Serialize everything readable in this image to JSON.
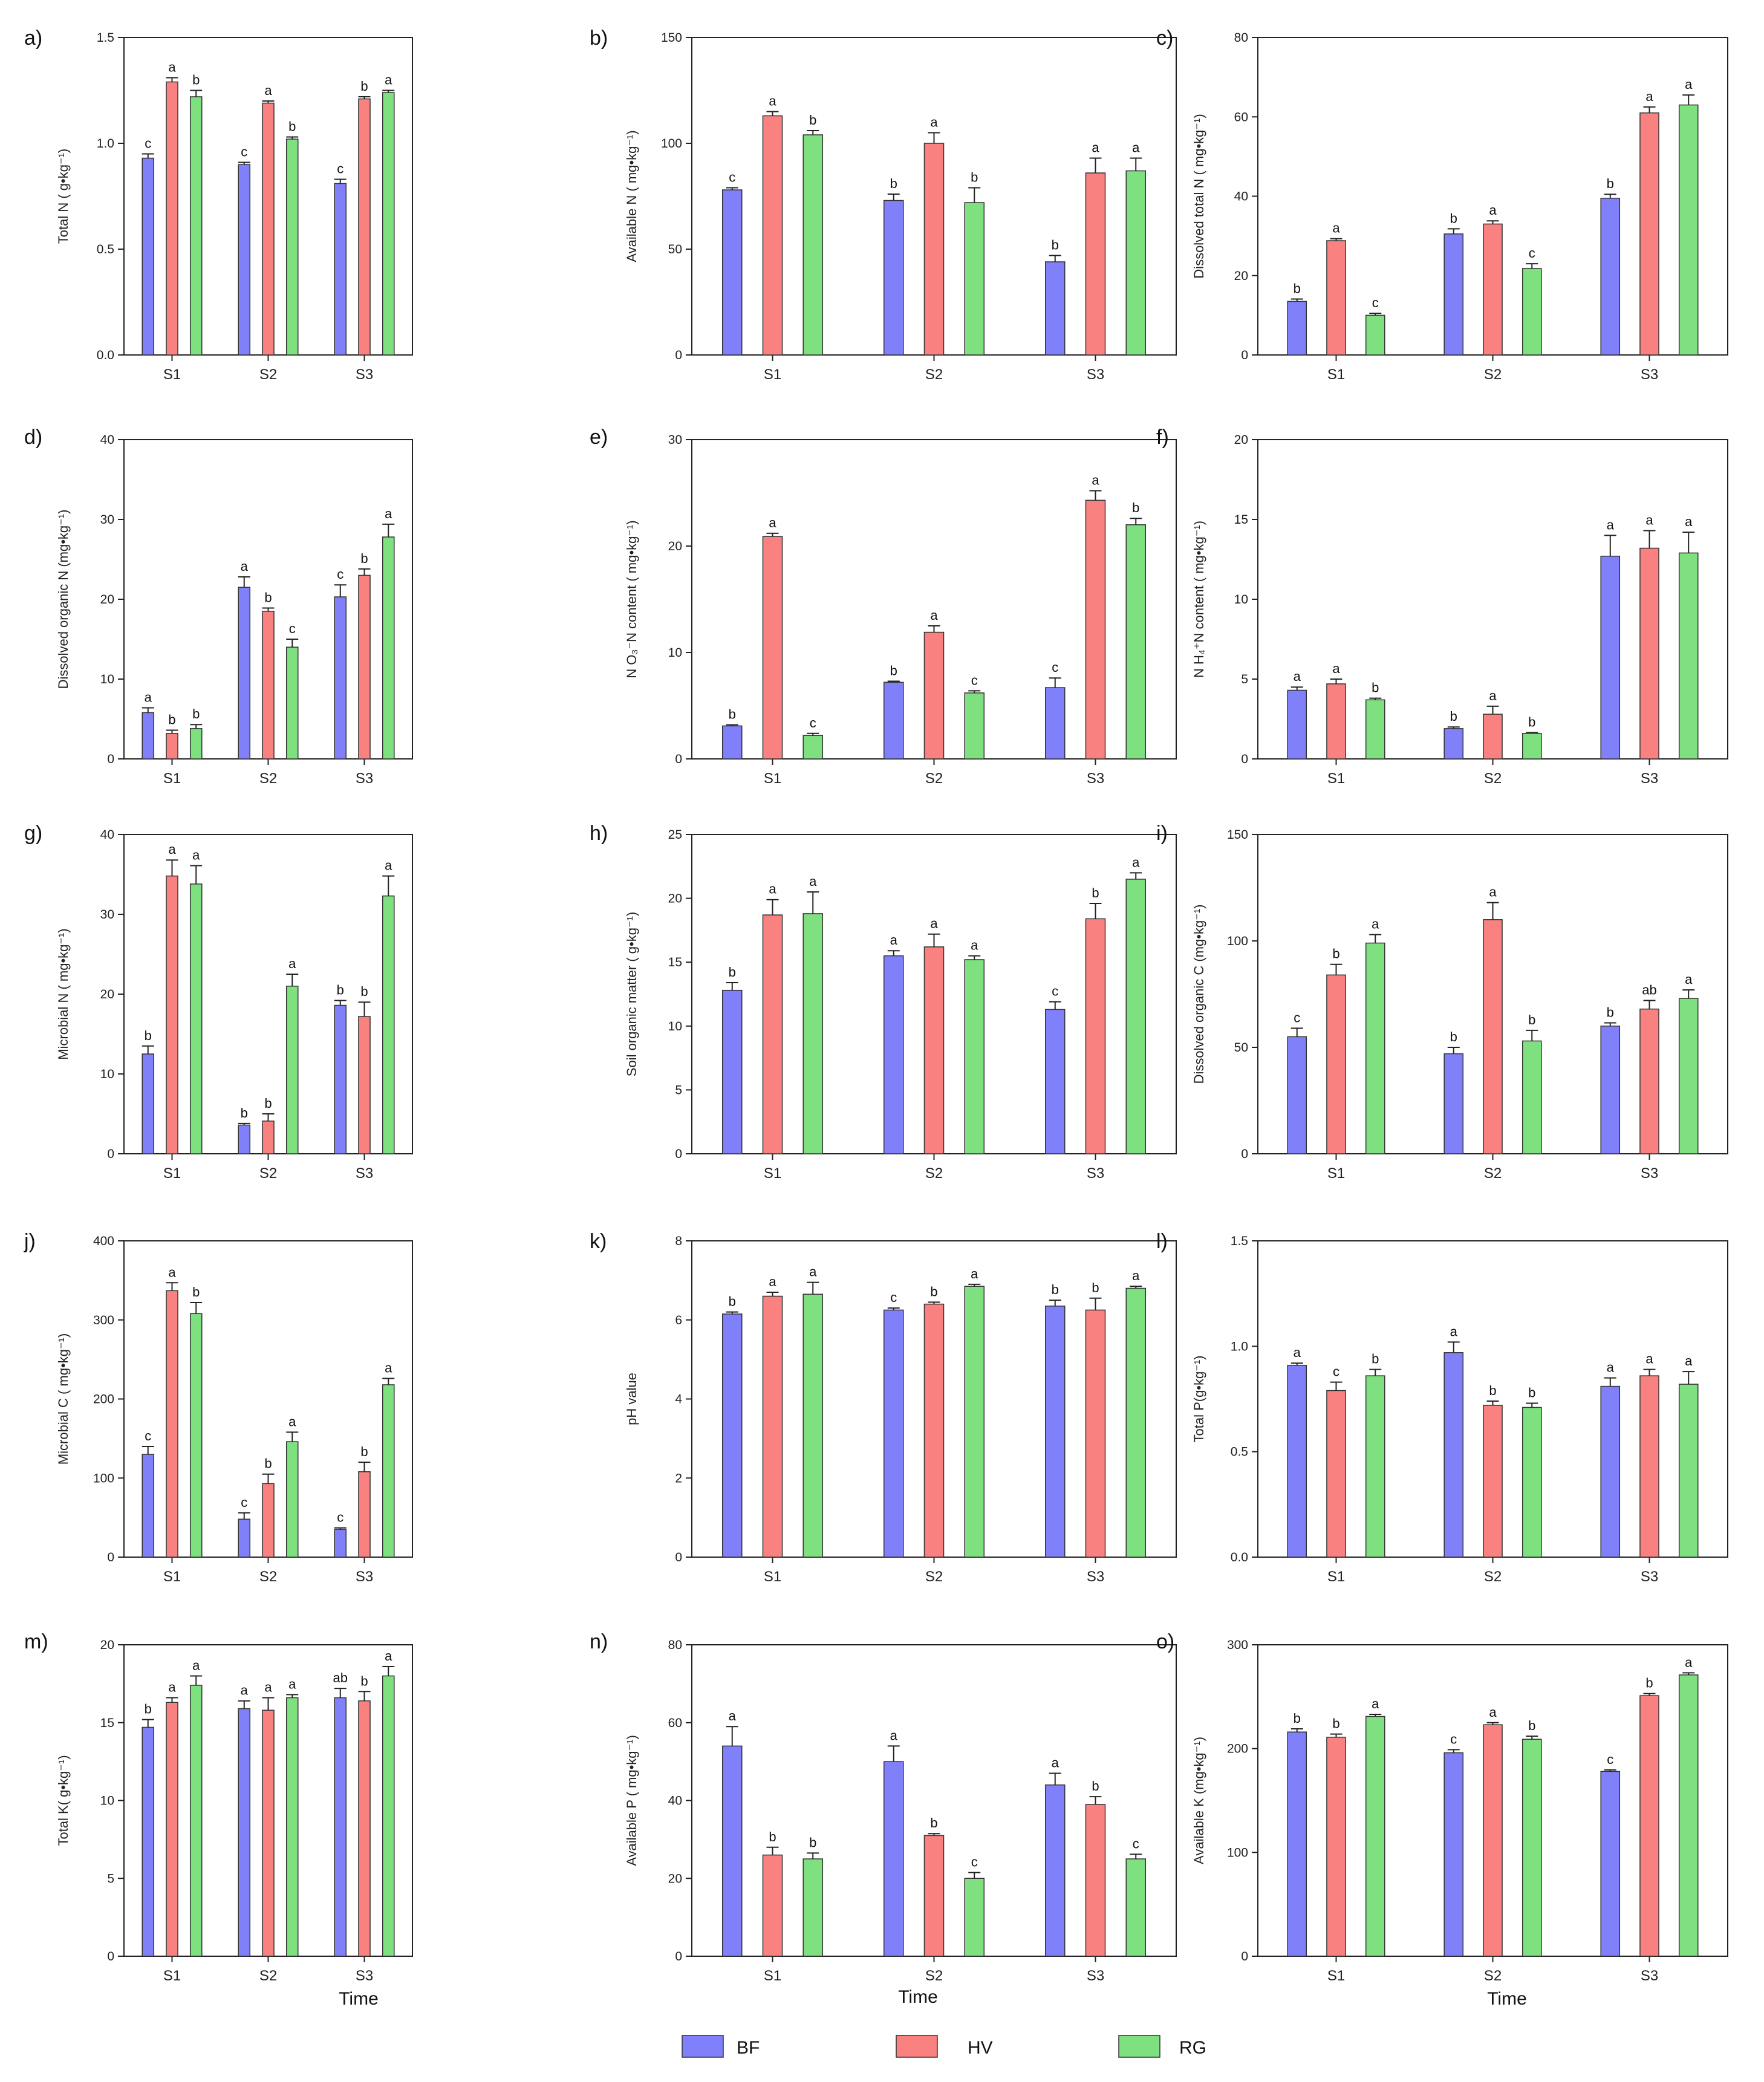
{
  "figure": {
    "colors": {
      "BF": "#8080fb",
      "HV": "#f98281",
      "RG": "#7fe07f"
    },
    "legend": {
      "items": [
        {
          "key": "BF",
          "label": "BF"
        },
        {
          "key": "HV",
          "label": "HV"
        },
        {
          "key": "RG",
          "label": "RG"
        }
      ],
      "placement": "bottom-center"
    },
    "x_title": "Time"
  },
  "chart_data": [
    {
      "type": "bar",
      "panel": "a)",
      "ylabel": "Total N ( g•kg⁻¹)",
      "ylim": [
        0,
        1.5
      ],
      "yticks": [
        "0.0",
        "0.5",
        "1.0",
        "1.5"
      ],
      "categories": [
        "S1",
        "S2",
        "S3"
      ],
      "series": [
        {
          "name": "BF",
          "values": [
            0.93,
            0.9,
            0.81
          ],
          "errors": [
            0.02,
            0.01,
            0.02
          ],
          "letters": [
            "c",
            "c",
            "c"
          ]
        },
        {
          "name": "HV",
          "values": [
            1.29,
            1.19,
            1.21
          ],
          "errors": [
            0.02,
            0.01,
            0.01
          ],
          "letters": [
            "a",
            "a",
            "b"
          ]
        },
        {
          "name": "RG",
          "values": [
            1.22,
            1.02,
            1.24
          ],
          "errors": [
            0.03,
            0.01,
            0.01
          ],
          "letters": [
            "b",
            "b",
            "a"
          ]
        }
      ]
    },
    {
      "type": "bar",
      "panel": "b)",
      "ylabel": "Available N ( mg•kg⁻¹)",
      "ylim": [
        0,
        150
      ],
      "yticks": [
        "0",
        "50",
        "100",
        "150"
      ],
      "categories": [
        "S1",
        "S2",
        "S3"
      ],
      "series": [
        {
          "name": "BF",
          "values": [
            78,
            73,
            44
          ],
          "errors": [
            1,
            3,
            3
          ],
          "letters": [
            "c",
            "b",
            "b"
          ]
        },
        {
          "name": "HV",
          "values": [
            113,
            100,
            86
          ],
          "errors": [
            2,
            5,
            7
          ],
          "letters": [
            "a",
            "a",
            "a"
          ]
        },
        {
          "name": "RG",
          "values": [
            104,
            72,
            87
          ],
          "errors": [
            2,
            7,
            6
          ],
          "letters": [
            "b",
            "b",
            "a"
          ]
        }
      ]
    },
    {
      "type": "bar",
      "panel": "c)",
      "ylabel": "Dissolved total N ( mg•kg⁻¹)",
      "ylim": [
        0,
        80
      ],
      "yticks": [
        "0",
        "20",
        "40",
        "60",
        "80"
      ],
      "categories": [
        "S1",
        "S2",
        "S3"
      ],
      "series": [
        {
          "name": "BF",
          "values": [
            13.5,
            30.5,
            39.5
          ],
          "errors": [
            0.6,
            1.3,
            1.0
          ],
          "letters": [
            "b",
            "b",
            "b"
          ]
        },
        {
          "name": "HV",
          "values": [
            28.8,
            33,
            61
          ],
          "errors": [
            0.5,
            0.8,
            1.5
          ],
          "letters": [
            "a",
            "a",
            "a"
          ]
        },
        {
          "name": "RG",
          "values": [
            10,
            21.8,
            63
          ],
          "errors": [
            0.5,
            1.2,
            2.5
          ],
          "letters": [
            "c",
            "c",
            "a"
          ]
        }
      ]
    },
    {
      "type": "bar",
      "panel": "d)",
      "ylabel": "Dissolved organic N (mg•kg⁻¹)",
      "ylim": [
        0,
        40
      ],
      "yticks": [
        "0",
        "10",
        "20",
        "30",
        "40"
      ],
      "categories": [
        "S1",
        "S2",
        "S3"
      ],
      "series": [
        {
          "name": "BF",
          "values": [
            5.8,
            21.5,
            20.3
          ],
          "errors": [
            0.6,
            1.3,
            1.5
          ],
          "letters": [
            "a",
            "a",
            "c"
          ]
        },
        {
          "name": "HV",
          "values": [
            3.2,
            18.5,
            23
          ],
          "errors": [
            0.4,
            0.4,
            0.8
          ],
          "letters": [
            "b",
            "b",
            "b"
          ]
        },
        {
          "name": "RG",
          "values": [
            3.8,
            14,
            27.8
          ],
          "errors": [
            0.5,
            1.0,
            1.6
          ],
          "letters": [
            "b",
            "c",
            "a"
          ]
        }
      ]
    },
    {
      "type": "bar",
      "panel": "e)",
      "ylabel": "N O₃⁻N content ( mg•kg⁻¹)",
      "ylim": [
        0,
        30
      ],
      "yticks": [
        "0",
        "10",
        "20",
        "30"
      ],
      "categories": [
        "S1",
        "S2",
        "S3"
      ],
      "series": [
        {
          "name": "BF",
          "values": [
            3.1,
            7.2,
            6.7
          ],
          "errors": [
            0.1,
            0.1,
            0.9
          ],
          "letters": [
            "b",
            "b",
            "c"
          ]
        },
        {
          "name": "HV",
          "values": [
            20.9,
            11.9,
            24.3
          ],
          "errors": [
            0.3,
            0.6,
            0.9
          ],
          "letters": [
            "a",
            "a",
            "a"
          ]
        },
        {
          "name": "RG",
          "values": [
            2.2,
            6.2,
            22
          ],
          "errors": [
            0.2,
            0.2,
            0.6
          ],
          "letters": [
            "c",
            "c",
            "b"
          ]
        }
      ]
    },
    {
      "type": "bar",
      "panel": "f)",
      "ylabel": "N H₄⁺N content ( mg•kg⁻¹)",
      "ylim": [
        0,
        20
      ],
      "yticks": [
        "0",
        "5",
        "10",
        "15",
        "20"
      ],
      "categories": [
        "S1",
        "S2",
        "S3"
      ],
      "series": [
        {
          "name": "BF",
          "values": [
            4.3,
            1.9,
            12.7
          ],
          "errors": [
            0.2,
            0.1,
            1.3
          ],
          "letters": [
            "a",
            "b",
            "a"
          ]
        },
        {
          "name": "HV",
          "values": [
            4.7,
            2.8,
            13.2
          ],
          "errors": [
            0.3,
            0.5,
            1.1
          ],
          "letters": [
            "a",
            "a",
            "a"
          ]
        },
        {
          "name": "RG",
          "values": [
            3.7,
            1.6,
            12.9
          ],
          "errors": [
            0.1,
            0.05,
            1.3
          ],
          "letters": [
            "b",
            "b",
            "a"
          ]
        }
      ]
    },
    {
      "type": "bar",
      "panel": "g)",
      "ylabel": "Microbial N ( mg•kg⁻¹)",
      "ylim": [
        0,
        40
      ],
      "yticks": [
        "0",
        "10",
        "20",
        "30",
        "40"
      ],
      "categories": [
        "S1",
        "S2",
        "S3"
      ],
      "series": [
        {
          "name": "BF",
          "values": [
            12.5,
            3.6,
            18.6
          ],
          "errors": [
            1.0,
            0.2,
            0.6
          ],
          "letters": [
            "b",
            "b",
            "b"
          ]
        },
        {
          "name": "HV",
          "values": [
            34.8,
            4.1,
            17.2
          ],
          "errors": [
            2.0,
            0.9,
            1.8
          ],
          "letters": [
            "a",
            "b",
            "b"
          ]
        },
        {
          "name": "RG",
          "values": [
            33.8,
            21,
            32.3
          ],
          "errors": [
            2.3,
            1.5,
            2.5
          ],
          "letters": [
            "a",
            "a",
            "a"
          ]
        }
      ]
    },
    {
      "type": "bar",
      "panel": "h)",
      "ylabel": "Soil organic matter ( g•kg⁻¹)",
      "ylim": [
        0,
        25
      ],
      "yticks": [
        "0",
        "5",
        "10",
        "15",
        "20",
        "25"
      ],
      "categories": [
        "S1",
        "S2",
        "S3"
      ],
      "series": [
        {
          "name": "BF",
          "values": [
            12.8,
            15.5,
            11.3
          ],
          "errors": [
            0.6,
            0.4,
            0.6
          ],
          "letters": [
            "b",
            "a",
            "c"
          ]
        },
        {
          "name": "HV",
          "values": [
            18.7,
            16.2,
            18.4
          ],
          "errors": [
            1.2,
            1.0,
            1.2
          ],
          "letters": [
            "a",
            "a",
            "b"
          ]
        },
        {
          "name": "RG",
          "values": [
            18.8,
            15.2,
            21.5
          ],
          "errors": [
            1.7,
            0.3,
            0.5
          ],
          "letters": [
            "a",
            "a",
            "a"
          ]
        }
      ]
    },
    {
      "type": "bar",
      "panel": "i)",
      "ylabel": "Dissolved organic C (mg•kg⁻¹)",
      "ylim": [
        0,
        150
      ],
      "yticks": [
        "0",
        "50",
        "100",
        "150"
      ],
      "categories": [
        "S1",
        "S2",
        "S3"
      ],
      "series": [
        {
          "name": "BF",
          "values": [
            55,
            47,
            60
          ],
          "errors": [
            4,
            3,
            1.5
          ],
          "letters": [
            "c",
            "b",
            "b"
          ]
        },
        {
          "name": "HV",
          "values": [
            84,
            110,
            68
          ],
          "errors": [
            5,
            8,
            4
          ],
          "letters": [
            "b",
            "a",
            "ab"
          ]
        },
        {
          "name": "RG",
          "values": [
            99,
            53,
            73
          ],
          "errors": [
            4,
            5,
            4
          ],
          "letters": [
            "a",
            "b",
            "a"
          ]
        }
      ]
    },
    {
      "type": "bar",
      "panel": "j)",
      "ylabel": "Microbial C ( mg•kg⁻¹)",
      "ylim": [
        0,
        400
      ],
      "yticks": [
        "0",
        "100",
        "200",
        "300",
        "400"
      ],
      "categories": [
        "S1",
        "S2",
        "S3"
      ],
      "series": [
        {
          "name": "BF",
          "values": [
            130,
            48,
            35
          ],
          "errors": [
            10,
            8,
            2
          ],
          "letters": [
            "c",
            "c",
            "c"
          ]
        },
        {
          "name": "HV",
          "values": [
            337,
            93,
            108
          ],
          "errors": [
            10,
            12,
            12
          ],
          "letters": [
            "a",
            "b",
            "b"
          ]
        },
        {
          "name": "RG",
          "values": [
            308,
            146,
            218
          ],
          "errors": [
            14,
            12,
            8
          ],
          "letters": [
            "b",
            "a",
            "a"
          ]
        }
      ]
    },
    {
      "type": "bar",
      "panel": "k)",
      "ylabel": "pH value",
      "ylim": [
        0,
        8
      ],
      "yticks": [
        "0",
        "2",
        "4",
        "6",
        "8"
      ],
      "categories": [
        "S1",
        "S2",
        "S3"
      ],
      "series": [
        {
          "name": "BF",
          "values": [
            6.15,
            6.25,
            6.35
          ],
          "errors": [
            0.05,
            0.05,
            0.15
          ],
          "letters": [
            "b",
            "c",
            "b"
          ]
        },
        {
          "name": "HV",
          "values": [
            6.6,
            6.4,
            6.25
          ],
          "errors": [
            0.1,
            0.05,
            0.3
          ],
          "letters": [
            "a",
            "b",
            "b"
          ]
        },
        {
          "name": "RG",
          "values": [
            6.65,
            6.85,
            6.8
          ],
          "errors": [
            0.3,
            0.05,
            0.05
          ],
          "letters": [
            "a",
            "a",
            "a"
          ]
        }
      ]
    },
    {
      "type": "bar",
      "panel": "l)",
      "ylabel": "Total P(g•kg⁻¹)",
      "ylim": [
        0,
        1.5
      ],
      "yticks": [
        "0.0",
        "0.5",
        "1.0",
        "1.5"
      ],
      "categories": [
        "S1",
        "S2",
        "S3"
      ],
      "series": [
        {
          "name": "BF",
          "values": [
            0.91,
            0.97,
            0.81
          ],
          "errors": [
            0.01,
            0.05,
            0.04
          ],
          "letters": [
            "a",
            "a",
            "a"
          ]
        },
        {
          "name": "HV",
          "values": [
            0.79,
            0.72,
            0.86
          ],
          "errors": [
            0.04,
            0.02,
            0.03
          ],
          "letters": [
            "c",
            "b",
            "a"
          ]
        },
        {
          "name": "RG",
          "values": [
            0.86,
            0.71,
            0.82
          ],
          "errors": [
            0.03,
            0.02,
            0.06
          ],
          "letters": [
            "b",
            "b",
            "a"
          ]
        }
      ]
    },
    {
      "type": "bar",
      "panel": "m)",
      "ylabel": "Total K( g•kg⁻¹)",
      "ylim": [
        0,
        20
      ],
      "yticks": [
        "0",
        "5",
        "10",
        "15",
        "20"
      ],
      "categories": [
        "S1",
        "S2",
        "S3"
      ],
      "series": [
        {
          "name": "BF",
          "values": [
            14.7,
            15.9,
            16.6
          ],
          "errors": [
            0.5,
            0.5,
            0.6
          ],
          "letters": [
            "b",
            "a",
            "ab"
          ]
        },
        {
          "name": "HV",
          "values": [
            16.3,
            15.8,
            16.4
          ],
          "errors": [
            0.3,
            0.8,
            0.6
          ],
          "letters": [
            "a",
            "a",
            "b"
          ]
        },
        {
          "name": "RG",
          "values": [
            17.4,
            16.6,
            18
          ],
          "errors": [
            0.6,
            0.2,
            0.6
          ],
          "letters": [
            "a",
            "a",
            "a"
          ]
        }
      ]
    },
    {
      "type": "bar",
      "panel": "n)",
      "ylabel": "Available P ( mg•kg⁻¹)",
      "ylim": [
        0,
        80
      ],
      "yticks": [
        "0",
        "20",
        "40",
        "60",
        "80"
      ],
      "categories": [
        "S1",
        "S2",
        "S3"
      ],
      "series": [
        {
          "name": "BF",
          "values": [
            54,
            50,
            44
          ],
          "errors": [
            5,
            4,
            3
          ],
          "letters": [
            "a",
            "a",
            "a"
          ]
        },
        {
          "name": "HV",
          "values": [
            26,
            31,
            39
          ],
          "errors": [
            2,
            0.5,
            2
          ],
          "letters": [
            "b",
            "b",
            "b"
          ]
        },
        {
          "name": "RG",
          "values": [
            25,
            20,
            25
          ],
          "errors": [
            1.5,
            1.5,
            1.2
          ],
          "letters": [
            "b",
            "c",
            "c"
          ]
        }
      ]
    },
    {
      "type": "bar",
      "panel": "o)",
      "ylabel": "Available K  (mg•kg⁻¹)",
      "ylim": [
        0,
        300
      ],
      "yticks": [
        "0",
        "100",
        "200",
        "300"
      ],
      "categories": [
        "S1",
        "S2",
        "S3"
      ],
      "series": [
        {
          "name": "BF",
          "values": [
            216,
            196,
            178
          ],
          "errors": [
            3,
            3,
            1.5
          ],
          "letters": [
            "b",
            "c",
            "c"
          ]
        },
        {
          "name": "HV",
          "values": [
            211,
            223,
            251
          ],
          "errors": [
            3,
            2,
            2
          ],
          "letters": [
            "b",
            "a",
            "b"
          ]
        },
        {
          "name": "RG",
          "values": [
            231,
            209,
            271
          ],
          "errors": [
            2,
            3,
            2
          ],
          "letters": [
            "a",
            "b",
            "a"
          ]
        }
      ]
    }
  ]
}
